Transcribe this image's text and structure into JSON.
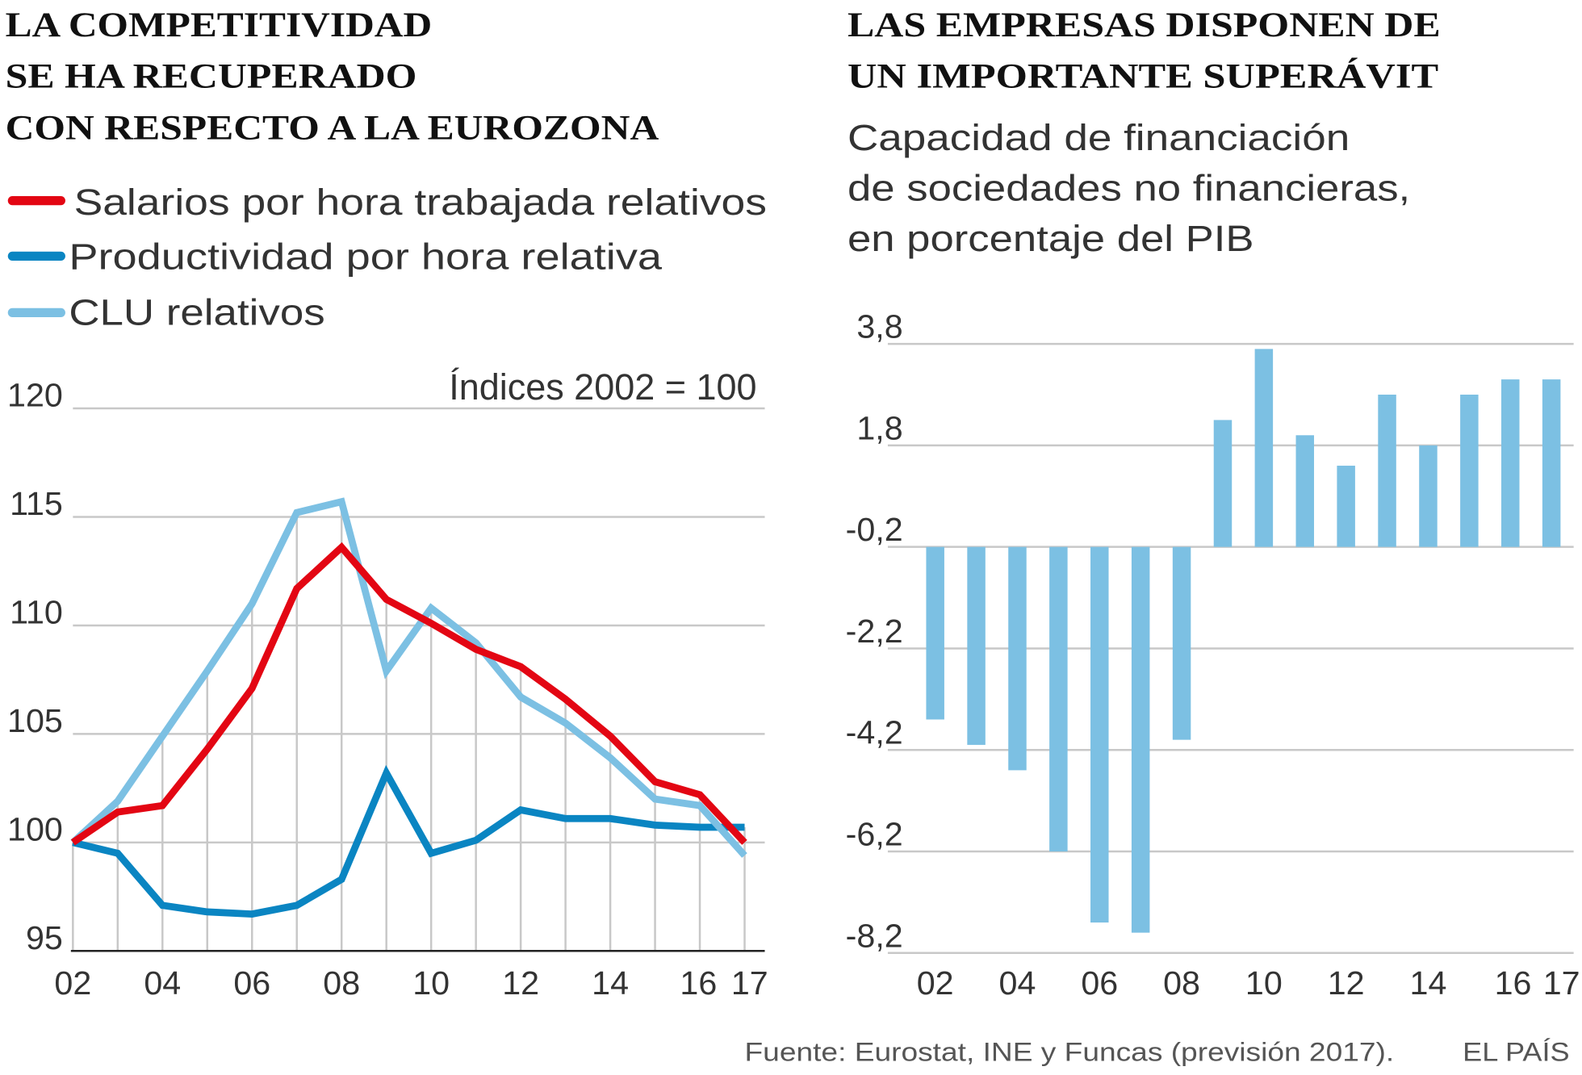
{
  "chart_data": [
    {
      "type": "line",
      "title": "LA COMPETITIVIDAD SE HA RECUPERADO CON RESPECTO A LA EUROZONA",
      "title_lines": [
        "LA COMPETITIVIDAD",
        "SE HA RECUPERADO",
        "CON RESPECTO A LA EUROZONA"
      ],
      "note": "Índices 2002 = 100",
      "x": [
        "02",
        "03",
        "04",
        "05",
        "06",
        "07",
        "08",
        "09",
        "10",
        "11",
        "12",
        "13",
        "14",
        "15",
        "16",
        "17"
      ],
      "x_tick_labels": [
        "02",
        "04",
        "06",
        "08",
        "10",
        "12",
        "14",
        "16",
        "17"
      ],
      "y_ticks": [
        95,
        100,
        105,
        110,
        115,
        120
      ],
      "ylim": [
        95,
        120
      ],
      "grid": true,
      "legend_position": "top-left",
      "series": [
        {
          "name": "Salarios por hora trabajada relativos",
          "color": "#e30613",
          "values": [
            100,
            101.4,
            101.7,
            104.3,
            107.1,
            111.7,
            113.6,
            111.2,
            110.1,
            108.9,
            108.1,
            106.6,
            104.9,
            102.8,
            102.2,
            100.0
          ]
        },
        {
          "name": "Productividad por hora relativa",
          "color": "#0a85c2",
          "values": [
            100,
            99.5,
            97.1,
            96.8,
            96.7,
            97.1,
            98.3,
            103.2,
            99.5,
            100.1,
            101.5,
            101.1,
            101.1,
            100.8,
            100.7,
            100.7
          ]
        },
        {
          "name": "CLU relativos",
          "color": "#7cc0e3",
          "values": [
            100,
            101.9,
            104.9,
            107.9,
            111.0,
            115.2,
            115.7,
            107.9,
            110.8,
            109.2,
            106.7,
            105.5,
            103.9,
            102.0,
            101.7,
            99.4
          ]
        }
      ]
    },
    {
      "type": "bar",
      "title": "LAS EMPRESAS DISPONEN DE UN IMPORTANTE SUPERÁVIT",
      "title_lines": [
        "LAS EMPRESAS DISPONEN DE",
        "UN IMPORTANTE SUPERÁVIT"
      ],
      "subtitle_lines": [
        "Capacidad de financiación",
        "de sociedades no financieras,",
        "en porcentaje del PIB"
      ],
      "categories": [
        "02",
        "03",
        "04",
        "05",
        "06",
        "07",
        "08",
        "09",
        "10",
        "11",
        "12",
        "13",
        "14",
        "15",
        "16",
        "17"
      ],
      "x_tick_labels": [
        "02",
        "04",
        "06",
        "08",
        "10",
        "12",
        "14",
        "16",
        "17"
      ],
      "values": [
        -3.6,
        -4.1,
        -4.6,
        -6.2,
        -7.6,
        -7.8,
        -4.0,
        2.3,
        3.7,
        2.0,
        1.4,
        2.8,
        1.8,
        2.8,
        3.1,
        3.1
      ],
      "baseline": -0.2,
      "y_ticks": [
        "3,8",
        "1,8",
        "-0,2",
        "-2,2",
        "-4,2",
        "-6,2",
        "-8,2"
      ],
      "y_tick_values": [
        3.8,
        1.8,
        -0.2,
        -2.2,
        -4.2,
        -6.2,
        -8.2
      ],
      "ylim": [
        -8.2,
        3.8
      ],
      "grid": true,
      "color": "#7cc0e3"
    }
  ],
  "footer": {
    "source": "Fuente: Eurostat, INE y Funcas (previsión 2017).",
    "brand": "EL PAÍS"
  }
}
